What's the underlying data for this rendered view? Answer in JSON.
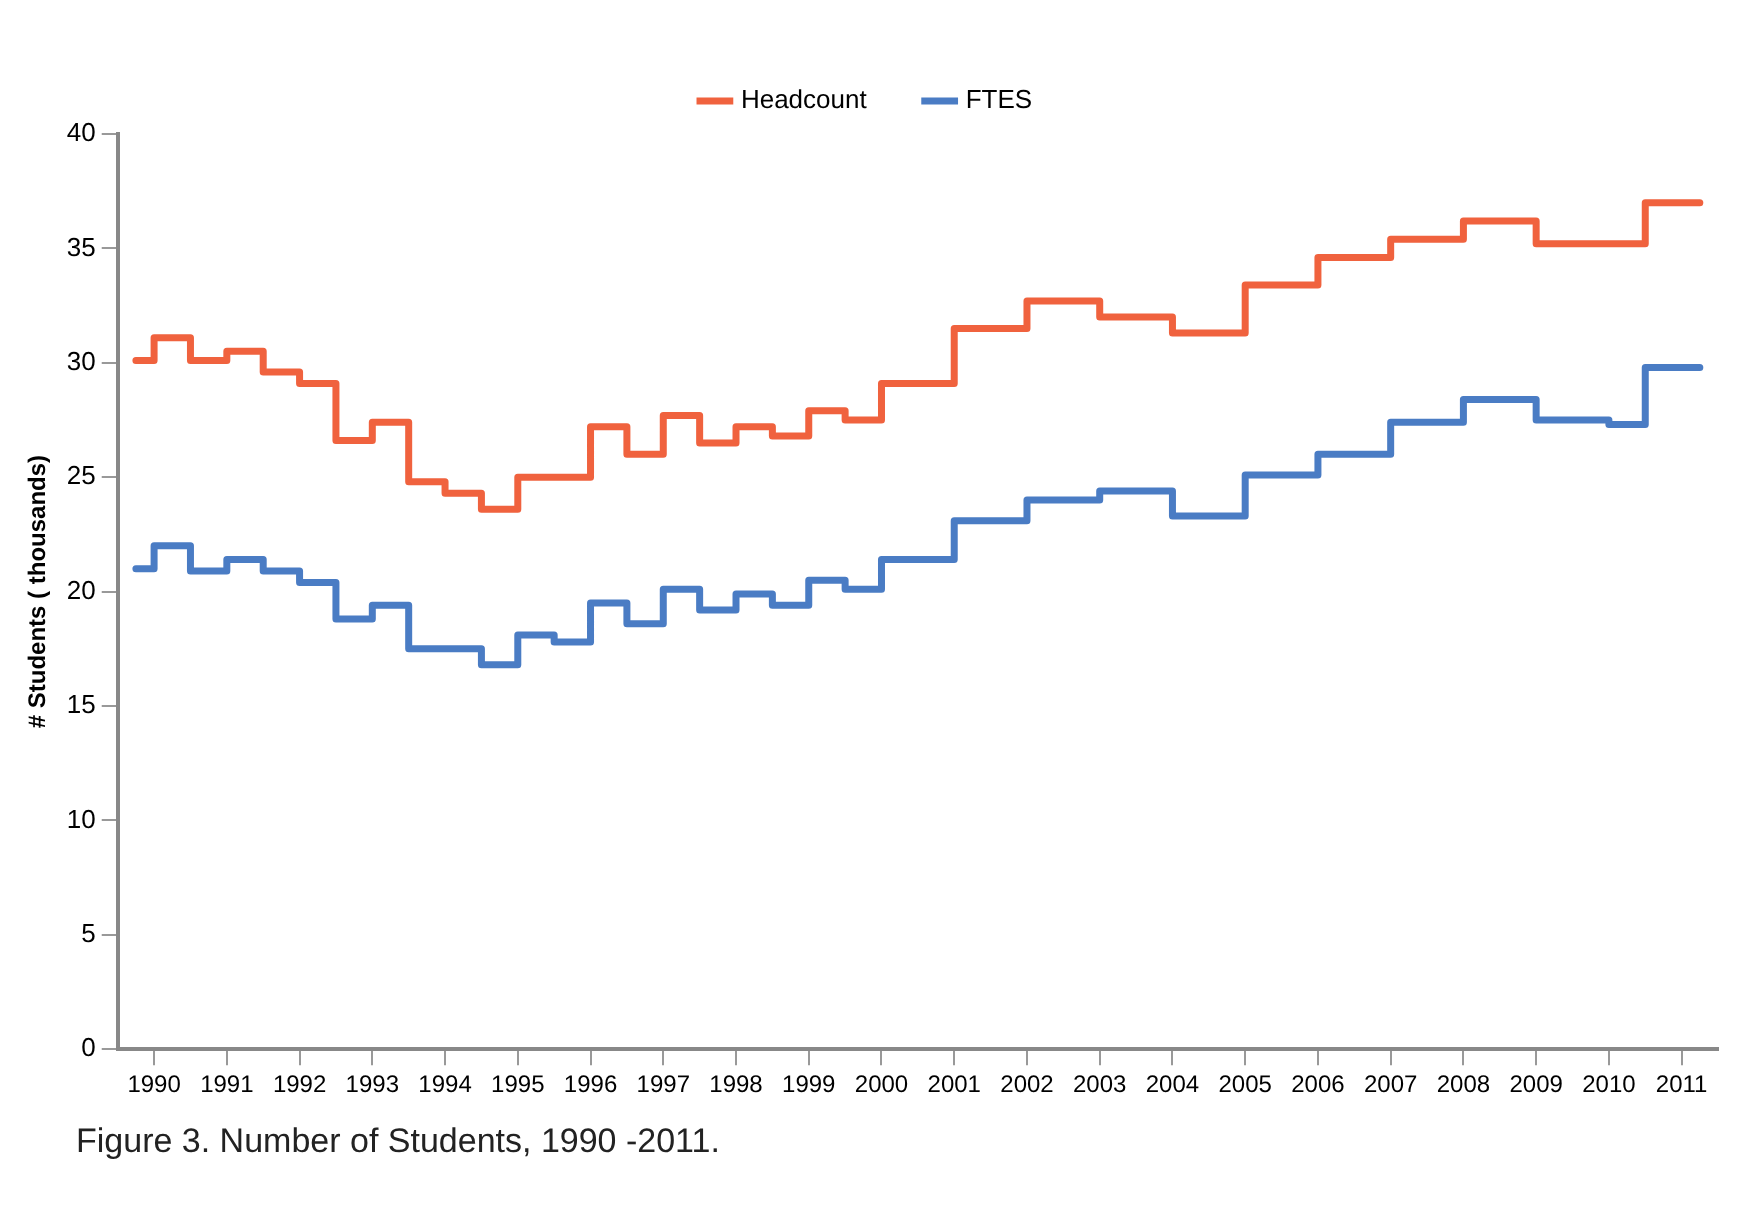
{
  "chart_data": {
    "type": "step",
    "ylabel": "# Students ( thousands)",
    "annotations": [
      "Figure 3.  Number of Students, 1990 -2011."
    ],
    "x": [
      1990.25,
      1990.75,
      1991.25,
      1991.75,
      1992.25,
      1992.75,
      1993.25,
      1993.75,
      1994.25,
      1994.75,
      1995.25,
      1995.75,
      1996.25,
      1996.75,
      1997.25,
      1997.75,
      1998.25,
      1998.75,
      1999.25,
      1999.75,
      2000.25,
      2000.75,
      2001.25,
      2001.75,
      2002.25,
      2002.75,
      2003.25,
      2003.75,
      2004.25,
      2004.75,
      2005.25,
      2005.75,
      2006.25,
      2006.75,
      2007.25,
      2007.75,
      2008.25,
      2008.75,
      2009.25,
      2009.75,
      2010.25,
      2010.75,
      2011.25,
      2011.75
    ],
    "series": [
      {
        "name": "Headcount",
        "color": "#f0623e",
        "values": [
          30.1,
          31.1,
          30.1,
          30.5,
          29.6,
          29.1,
          26.6,
          27.4,
          24.8,
          24.3,
          23.6,
          25.0,
          25.0,
          27.2,
          26.0,
          27.7,
          26.5,
          27.2,
          26.8,
          27.9,
          27.5,
          29.1,
          29.1,
          31.5,
          31.5,
          32.7,
          32.7,
          32.0,
          32.0,
          31.3,
          31.3,
          33.4,
          33.4,
          34.6,
          34.6,
          35.4,
          35.4,
          36.2,
          36.2,
          35.2,
          35.2,
          35.2,
          37.0,
          37.0
        ]
      },
      {
        "name": "FTES",
        "color": "#4a7cc4",
        "values": [
          21.0,
          22.0,
          20.9,
          21.4,
          20.9,
          20.4,
          18.8,
          19.4,
          17.5,
          17.5,
          16.8,
          18.1,
          17.8,
          19.5,
          18.6,
          20.1,
          19.2,
          19.9,
          19.4,
          20.5,
          20.1,
          21.4,
          21.4,
          23.1,
          23.1,
          24.0,
          24.0,
          24.4,
          24.4,
          23.3,
          23.3,
          25.1,
          25.1,
          26.0,
          26.0,
          27.4,
          27.4,
          28.4,
          28.4,
          27.5,
          27.5,
          27.3,
          29.8,
          29.8
        ]
      }
    ],
    "xlim": [
      1990,
      2012
    ],
    "xticks": [
      {
        "value": 1990.5,
        "label": "1990"
      },
      {
        "value": 1991.5,
        "label": "1991"
      },
      {
        "value": 1992.5,
        "label": "1992"
      },
      {
        "value": 1993.5,
        "label": "1993"
      },
      {
        "value": 1994.5,
        "label": "1994"
      },
      {
        "value": 1995.5,
        "label": "1995"
      },
      {
        "value": 1996.5,
        "label": "1996"
      },
      {
        "value": 1997.5,
        "label": "1997"
      },
      {
        "value": 1998.5,
        "label": "1998"
      },
      {
        "value": 1999.5,
        "label": "1999"
      },
      {
        "value": 2000.5,
        "label": "2000"
      },
      {
        "value": 2001.5,
        "label": "2001"
      },
      {
        "value": 2002.5,
        "label": "2002"
      },
      {
        "value": 2003.5,
        "label": "2003"
      },
      {
        "value": 2004.5,
        "label": "2004"
      },
      {
        "value": 2005.5,
        "label": "2005"
      },
      {
        "value": 2006.5,
        "label": "2006"
      },
      {
        "value": 2007.5,
        "label": "2007"
      },
      {
        "value": 2008.5,
        "label": "2008"
      },
      {
        "value": 2009.5,
        "label": "2009"
      },
      {
        "value": 2010.5,
        "label": "2010"
      },
      {
        "value": 2011.5,
        "label": "2011"
      }
    ],
    "ylim": [
      0,
      40
    ],
    "yticks": [
      0,
      5,
      10,
      15,
      20,
      25,
      30,
      35,
      40
    ],
    "grid": false,
    "legend": "top",
    "marker": "none",
    "line_style": "solid"
  }
}
